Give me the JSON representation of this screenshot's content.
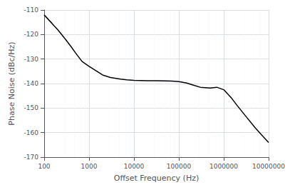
{
  "chart_data": {
    "type": "line",
    "xlabel": "Offset Frequency (Hz)",
    "ylabel": "Phase Noise (dBc/Hz)",
    "x": [
      100,
      150,
      200,
      300,
      400,
      500,
      700,
      1000,
      1500,
      2000,
      3000,
      5000,
      7000,
      10000,
      20000,
      30000,
      50000,
      70000,
      100000,
      150000,
      200000,
      300000,
      500000,
      700000,
      1000000,
      1500000,
      2000000,
      3000000,
      5000000,
      7000000,
      10000000
    ],
    "values": [
      -112,
      -115.5,
      -118,
      -122,
      -125,
      -127.5,
      -131,
      -133,
      -135,
      -136.5,
      -137.5,
      -138.2,
      -138.5,
      -138.7,
      -138.8,
      -138.8,
      -138.9,
      -139.0,
      -139.2,
      -139.8,
      -140.5,
      -141.5,
      -141.8,
      -141.5,
      -142.5,
      -146,
      -149,
      -153,
      -158,
      -161,
      -164
    ],
    "color": "#000000",
    "log": "x",
    "xlim": [
      100,
      10000000
    ],
    "xticks": [
      100,
      1000,
      10000,
      100000,
      1000000,
      10000000
    ],
    "ylim": [
      -170,
      -110
    ],
    "yticks": [
      -170,
      -160,
      -150,
      -140,
      -130,
      -120,
      -110
    ],
    "grid": true
  }
}
